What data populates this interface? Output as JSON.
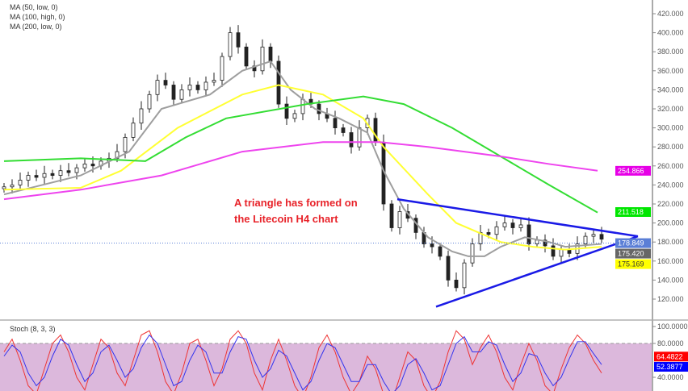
{
  "legend": [
    "MA (50, low, 0)",
    "MA (100, high, 0)",
    "MA (200, low, 0)"
  ],
  "annotation": [
    "A triangle has formed on",
    "the Litecoin H4 chart"
  ],
  "stoch_label": "Stoch (8, 3, 3)",
  "chart_data": [
    {
      "type": "candlestick",
      "ylim": [
        110,
        425
      ],
      "yticks": [
        "420.000",
        "400.000",
        "380.000",
        "360.000",
        "340.000",
        "320.000",
        "300.000",
        "280.000",
        "260.000",
        "240.000",
        "220.000",
        "200.000",
        "180.000",
        "160.000",
        "140.000",
        "120.000"
      ],
      "closes": [
        238,
        240,
        245,
        250,
        248,
        252,
        250,
        255,
        253,
        258,
        262,
        260,
        265,
        268,
        275,
        290,
        305,
        320,
        335,
        350,
        345,
        330,
        340,
        345,
        340,
        348,
        350,
        375,
        400,
        385,
        365,
        360,
        385,
        370,
        325,
        310,
        315,
        330,
        325,
        315,
        310,
        300,
        295,
        280,
        300,
        310,
        285,
        220,
        195,
        212,
        205,
        190,
        178,
        175,
        165,
        140,
        132,
        158,
        178,
        190,
        188,
        196,
        200,
        195,
        198,
        178,
        182,
        176,
        165,
        172,
        168,
        178,
        186,
        188,
        183
      ],
      "moving_averages": [
        {
          "color": "#9e9e9e",
          "points": [
            [
              0,
              230
            ],
            [
              9.5,
              250
            ],
            [
              15.5,
              275
            ],
            [
              19.5,
              320
            ],
            [
              25.5,
              335
            ],
            [
              29.5,
              360
            ],
            [
              33,
              370
            ],
            [
              35.5,
              340
            ],
            [
              38.5,
              320
            ],
            [
              41.5,
              310
            ],
            [
              45,
              295
            ],
            [
              47,
              255
            ],
            [
              49.5,
              215
            ],
            [
              52.5,
              185
            ],
            [
              55.5,
              170
            ],
            [
              57.5,
              165
            ],
            [
              59.5,
              165
            ],
            [
              61.5,
              175
            ],
            [
              64.5,
              185
            ],
            [
              67.5,
              180
            ],
            [
              69.5,
              175
            ],
            [
              74,
              178
            ]
          ]
        },
        {
          "color": "#ffff33",
          "points": [
            [
              0,
              235
            ],
            [
              9.5,
              237
            ],
            [
              14.5,
              255
            ],
            [
              21.5,
              300
            ],
            [
              29.5,
              335
            ],
            [
              34,
              345
            ],
            [
              39.5,
              335
            ],
            [
              44.5,
              310
            ],
            [
              47,
              280
            ],
            [
              52.5,
              230
            ],
            [
              56,
              200
            ],
            [
              61.5,
              180
            ],
            [
              65.5,
              175
            ],
            [
              69.5,
              172
            ],
            [
              74,
              175
            ]
          ]
        },
        {
          "color": "#33dd33",
          "points": [
            [
              0,
              265
            ],
            [
              9.5,
              268
            ],
            [
              17.5,
              265
            ],
            [
              22.5,
              290
            ],
            [
              27.5,
              310
            ],
            [
              37.5,
              325
            ],
            [
              44.5,
              333
            ],
            [
              49.5,
              325
            ],
            [
              55.5,
              300
            ],
            [
              61.5,
              270
            ],
            [
              67.5,
              240
            ],
            [
              73.5,
              211
            ]
          ]
        },
        {
          "color": "#ee44ee",
          "points": [
            [
              0,
              225
            ],
            [
              9.5,
              235
            ],
            [
              19.5,
              250
            ],
            [
              29.5,
              275
            ],
            [
              39.5,
              285
            ],
            [
              46.5,
              285
            ],
            [
              52.5,
              280
            ],
            [
              61.5,
              270
            ],
            [
              67.5,
              262
            ],
            [
              73.5,
              255
            ]
          ]
        }
      ],
      "trendlines": [
        {
          "from": [
            48.7,
            225
          ],
          "to": [
            78.5,
            186
          ],
          "color": "#1a1ae6"
        },
        {
          "from": [
            53.5,
            112
          ],
          "to": [
            78.5,
            186
          ],
          "color": "#1a1ae6"
        }
      ],
      "current_price_line": 178.849,
      "price_labels": [
        {
          "text": "254.866",
          "value": 254.866,
          "color": "#e600e6"
        },
        {
          "text": "211.518",
          "value": 211.518,
          "color": "#00e600"
        },
        {
          "text": "178.849",
          "value": 178.849,
          "color": "#5b7fd6"
        },
        {
          "text": "175.420",
          "value": 175.42,
          "color": "#666666"
        },
        {
          "text": "175.169",
          "value": 175.169,
          "color": "#ffff00"
        }
      ]
    },
    {
      "type": "line",
      "title": "Stoch (8, 3, 3)",
      "ylim": [
        0,
        100
      ],
      "yticks": [
        "100.0000",
        "80.0000",
        "40.0000"
      ],
      "band": [
        20,
        80
      ],
      "k": [
        70,
        85,
        60,
        30,
        20,
        50,
        80,
        90,
        70,
        40,
        25,
        55,
        85,
        75,
        45,
        30,
        60,
        90,
        95,
        70,
        35,
        20,
        45,
        80,
        85,
        60,
        30,
        50,
        85,
        95,
        80,
        45,
        25,
        60,
        85,
        60,
        30,
        15,
        40,
        75,
        90,
        70,
        40,
        20,
        35,
        65,
        50,
        20,
        10,
        40,
        70,
        60,
        30,
        15,
        35,
        70,
        95,
        85,
        55,
        75,
        90,
        70,
        40,
        25,
        55,
        80,
        60,
        30,
        20,
        50,
        75,
        90,
        80,
        60,
        45
      ],
      "d": [
        65,
        78,
        70,
        45,
        30,
        40,
        65,
        85,
        78,
        55,
        35,
        45,
        70,
        78,
        60,
        40,
        50,
        75,
        90,
        80,
        55,
        30,
        35,
        60,
        78,
        70,
        45,
        45,
        70,
        88,
        85,
        60,
        40,
        50,
        72,
        65,
        45,
        25,
        35,
        60,
        80,
        75,
        55,
        35,
        35,
        55,
        55,
        35,
        20,
        30,
        55,
        62,
        45,
        25,
        30,
        55,
        80,
        88,
        70,
        70,
        82,
        78,
        55,
        35,
        45,
        68,
        65,
        45,
        30,
        40,
        62,
        82,
        82,
        68,
        55
      ],
      "labels": [
        {
          "text": "64.4822",
          "value": 64.4822,
          "color": "#ff0000"
        },
        {
          "text": "52.3877",
          "value": 52.3877,
          "color": "#0000ff"
        }
      ]
    }
  ]
}
